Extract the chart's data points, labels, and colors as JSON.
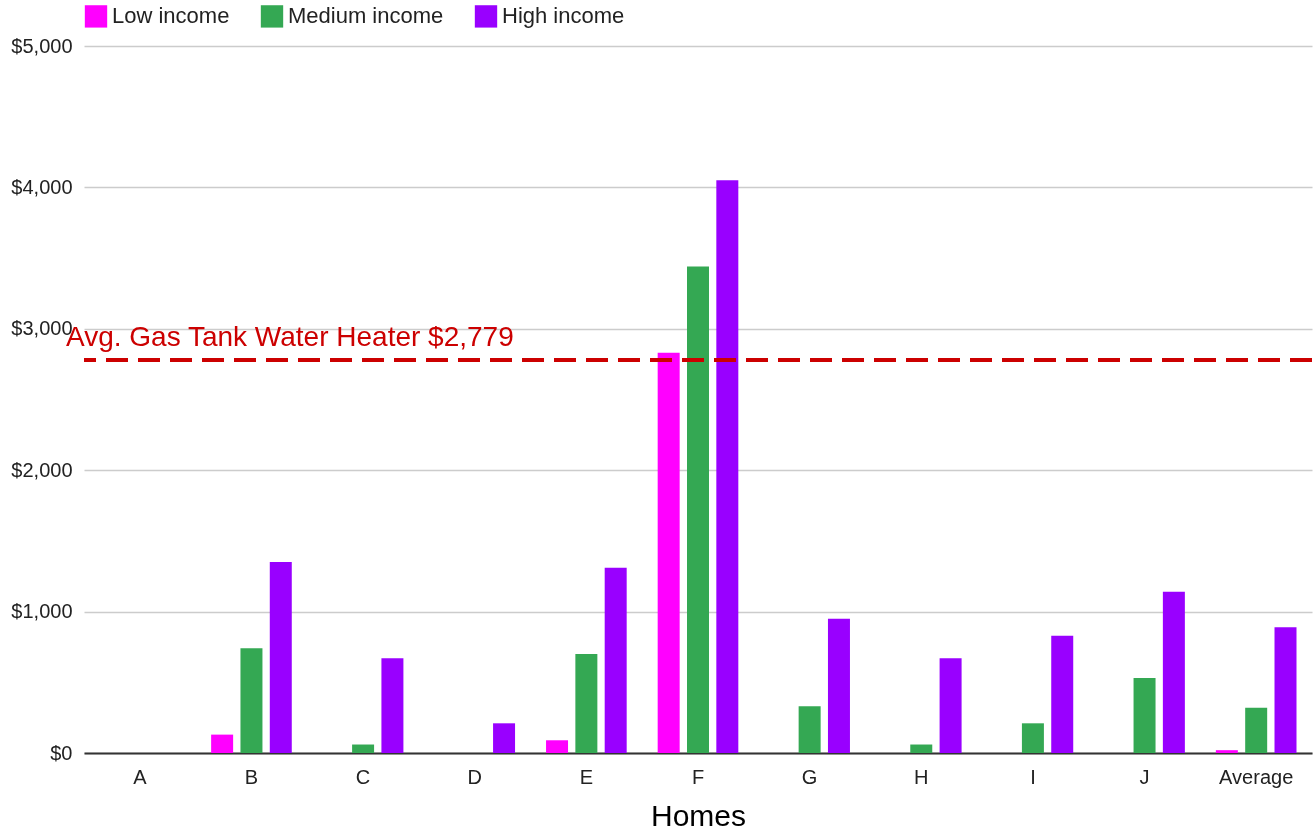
{
  "chart_data": {
    "type": "bar",
    "xlabel": "Homes",
    "categories": [
      "A",
      "B",
      "C",
      "D",
      "E",
      "F",
      "G",
      "H",
      "I",
      "J",
      "Average"
    ],
    "series": [
      {
        "name": "Low income",
        "color": "#ff00ff",
        "values": [
          0,
          130,
          0,
          0,
          90,
          2830,
          0,
          0,
          0,
          0,
          20
        ]
      },
      {
        "name": "Medium income",
        "color": "#34a853",
        "values": [
          0,
          740,
          60,
          0,
          700,
          3440,
          330,
          60,
          210,
          530,
          320
        ]
      },
      {
        "name": "High income",
        "color": "#9900ff",
        "values": [
          0,
          1350,
          670,
          210,
          1310,
          4050,
          950,
          670,
          830,
          1140,
          890
        ]
      }
    ],
    "ylim": [
      0,
      5000
    ],
    "yticks": [
      {
        "value": 0,
        "label": "$0"
      },
      {
        "value": 1000,
        "label": "$1,000"
      },
      {
        "value": 2000,
        "label": "$2,000"
      },
      {
        "value": 3000,
        "label": "$3,000"
      },
      {
        "value": 4000,
        "label": "$4,000"
      },
      {
        "value": 5000,
        "label": "$5,000"
      }
    ],
    "ref_lines": [
      {
        "axis": "y",
        "value": 2779,
        "label": "Avg. Gas Tank Water Heater $2,779",
        "color": "#cc0000",
        "line_style": "dashed"
      }
    ],
    "grid": "y",
    "legend": "top"
  }
}
